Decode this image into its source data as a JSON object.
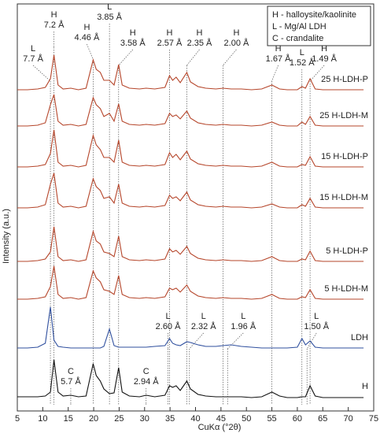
{
  "chart_data": {
    "type": "line",
    "x_label": "CuKα (°2θ)",
    "y_label": "Intensity (a.u.)",
    "xlim": [
      5,
      75
    ],
    "xticks": [
      5,
      10,
      15,
      20,
      25,
      30,
      35,
      40,
      45,
      50,
      55,
      60,
      65,
      70,
      75
    ],
    "legend_text": [
      "H - halloysite/kaolinite",
      "L - Mg/Al LDH",
      "C - crandalite"
    ],
    "x": [
      5,
      7,
      9,
      10.5,
      11.5,
      12.2,
      13,
      14,
      15.5,
      17,
      18.5,
      19.9,
      20.5,
      21.3,
      22,
      23.1,
      24,
      24.9,
      25.6,
      27,
      29,
      30.3,
      32,
      34,
      34.9,
      35.5,
      36.2,
      37,
      38.3,
      39,
      40.5,
      42,
      44,
      45.4,
      47,
      49,
      51,
      53,
      55,
      56.5,
      58,
      60,
      60.9,
      61.6,
      62.5,
      63.5,
      65,
      67,
      69,
      71,
      73
    ],
    "series": [
      {
        "name": "25 H-LDH-P",
        "color": "#b5452a",
        "values": [
          8,
          8,
          9,
          11,
          22,
          52,
          14,
          9,
          10,
          8,
          10,
          46,
          34,
          30,
          20,
          20,
          14,
          40,
          14,
          10,
          9,
          10,
          9,
          11,
          26,
          20,
          24,
          17,
          30,
          18,
          12,
          10,
          9,
          10,
          9,
          9,
          8,
          9,
          14,
          9,
          8,
          8,
          12,
          10,
          22,
          9,
          8,
          8,
          8,
          8,
          8
        ]
      },
      {
        "name": "25 H-LDH-M",
        "color": "#b5452a",
        "values": [
          8,
          8,
          9,
          12,
          35,
          48,
          14,
          9,
          10,
          8,
          10,
          44,
          35,
          30,
          20,
          24,
          14,
          36,
          14,
          10,
          9,
          10,
          9,
          11,
          24,
          20,
          22,
          17,
          27,
          18,
          12,
          10,
          9,
          10,
          9,
          9,
          8,
          9,
          13,
          9,
          8,
          8,
          13,
          10,
          20,
          9,
          8,
          8,
          8,
          8,
          8
        ]
      },
      {
        "name": "15 H-LDH-P",
        "color": "#b5452a",
        "values": [
          8,
          8,
          9,
          11,
          25,
          55,
          14,
          9,
          10,
          8,
          10,
          48,
          36,
          30,
          20,
          20,
          14,
          42,
          14,
          10,
          9,
          10,
          9,
          11,
          26,
          20,
          24,
          17,
          28,
          18,
          12,
          10,
          9,
          10,
          9,
          9,
          8,
          9,
          14,
          9,
          8,
          8,
          11,
          10,
          21,
          9,
          8,
          8,
          8,
          8,
          8
        ]
      },
      {
        "name": "15 H-LDH-M",
        "color": "#b5452a",
        "values": [
          8,
          8,
          9,
          12,
          38,
          52,
          14,
          9,
          10,
          8,
          10,
          45,
          35,
          30,
          20,
          22,
          14,
          38,
          14,
          10,
          9,
          10,
          9,
          11,
          24,
          20,
          22,
          17,
          28,
          18,
          12,
          10,
          9,
          10,
          9,
          9,
          8,
          9,
          13,
          9,
          8,
          8,
          12,
          10,
          20,
          9,
          8,
          8,
          8,
          8,
          8
        ]
      },
      {
        "name": "5 H-LDH-P",
        "color": "#b5452a",
        "values": [
          8,
          8,
          9,
          11,
          20,
          52,
          14,
          9,
          10,
          8,
          10,
          46,
          34,
          30,
          20,
          18,
          14,
          40,
          14,
          10,
          9,
          10,
          9,
          11,
          24,
          20,
          22,
          17,
          27,
          18,
          12,
          10,
          9,
          10,
          9,
          9,
          8,
          9,
          14,
          9,
          8,
          8,
          11,
          10,
          21,
          9,
          8,
          8,
          8,
          8,
          8
        ]
      },
      {
        "name": "5 H-LDH-M",
        "color": "#b5452a",
        "values": [
          8,
          8,
          9,
          11,
          24,
          50,
          14,
          9,
          10,
          8,
          10,
          44,
          35,
          30,
          20,
          18,
          14,
          38,
          14,
          10,
          9,
          10,
          9,
          11,
          22,
          20,
          22,
          17,
          26,
          18,
          12,
          10,
          9,
          10,
          9,
          9,
          8,
          9,
          14,
          9,
          8,
          8,
          11,
          10,
          20,
          9,
          8,
          8,
          8,
          8,
          8
        ]
      },
      {
        "name": "LDH",
        "color": "#2f4f9e",
        "values": [
          8,
          8,
          9,
          14,
          60,
          18,
          10,
          9,
          8,
          8,
          8,
          8,
          8,
          8,
          10,
          32,
          11,
          9,
          9,
          9,
          9,
          9,
          10,
          11,
          20,
          14,
          12,
          11,
          16,
          15,
          12,
          10,
          10,
          11,
          12,
          10,
          9,
          8,
          8,
          8,
          8,
          9,
          20,
          12,
          17,
          9,
          8,
          8,
          8,
          8,
          8
        ]
      },
      {
        "name": "H",
        "color": "#111111",
        "values": [
          8,
          8,
          8,
          9,
          14,
          55,
          14,
          9,
          10,
          8,
          9,
          50,
          35,
          28,
          18,
          12,
          13,
          45,
          14,
          9,
          8,
          10,
          8,
          10,
          22,
          20,
          22,
          16,
          28,
          18,
          11,
          9,
          8,
          8,
          8,
          8,
          7,
          8,
          14,
          9,
          7,
          7,
          8,
          8,
          22,
          9,
          7,
          7,
          7,
          7,
          7
        ]
      }
    ],
    "annotations": [
      {
        "lines": [
          "L",
          "7.7 Å"
        ],
        "x": 11.5
      },
      {
        "lines": [
          "H",
          "7.2 Å"
        ],
        "x": 12.2
      },
      {
        "lines": [
          "H",
          "4.46 Å"
        ],
        "x": 19.9
      },
      {
        "lines": [
          "L",
          "3.85 Å"
        ],
        "x": 23.1
      },
      {
        "lines": [
          "H",
          "3.58 Å"
        ],
        "x": 24.9
      },
      {
        "lines": [
          "H",
          "2.57 Å"
        ],
        "x": 34.9
      },
      {
        "lines": [
          "H",
          "2.35 Å"
        ],
        "x": 38.3
      },
      {
        "lines": [
          "H",
          "2.00 Å"
        ],
        "x": 45.4
      },
      {
        "lines": [
          "H",
          "1.67 Å"
        ],
        "x": 55.0
      },
      {
        "lines": [
          "L",
          "1.52 Å"
        ],
        "x": 60.9
      },
      {
        "lines": [
          "H",
          "1.49 Å"
        ],
        "x": 62.5
      },
      {
        "lines": [
          "L",
          "2.60 Å"
        ],
        "x": 34.6
      },
      {
        "lines": [
          "L",
          "2.32 Å"
        ],
        "x": 38.8
      },
      {
        "lines": [
          "L",
          "1.96 Å"
        ],
        "x": 46.3
      },
      {
        "lines": [
          "L",
          "1.50 Å"
        ],
        "x": 61.9
      },
      {
        "lines": [
          "C",
          "5.7 Å"
        ],
        "x": 15.5
      },
      {
        "lines": [
          "C",
          "2.94 Å"
        ],
        "x": 30.3
      }
    ]
  }
}
